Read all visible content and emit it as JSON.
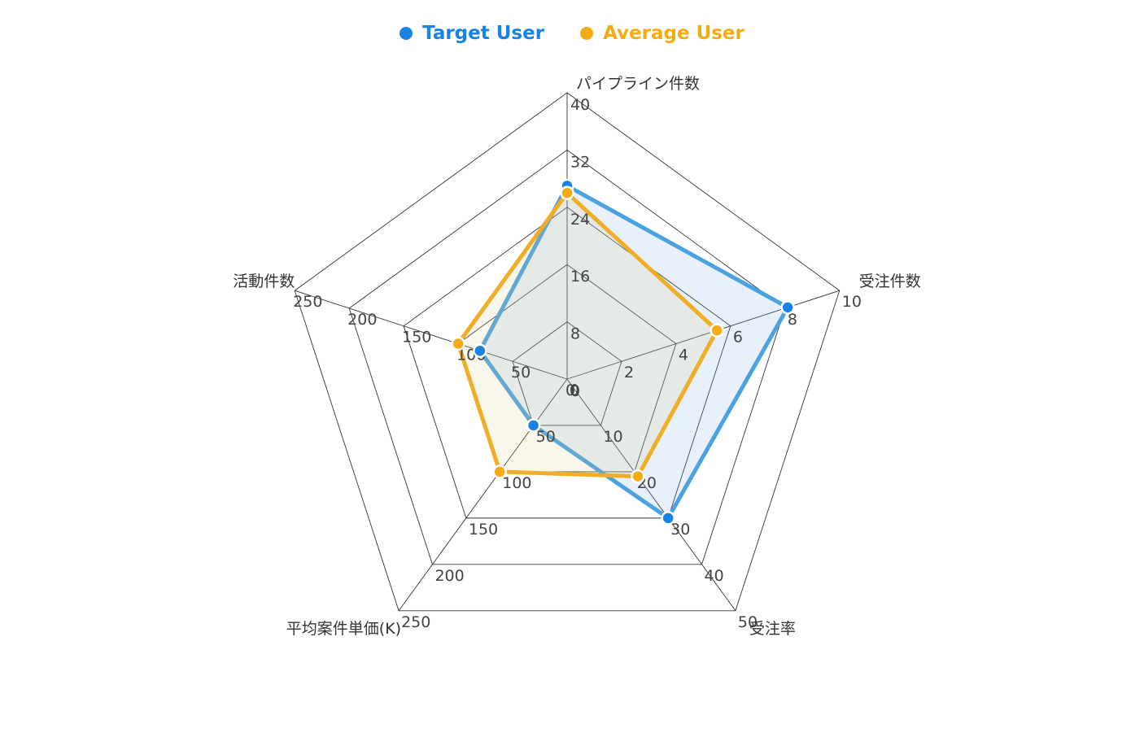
{
  "chart_data": {
    "type": "radar",
    "legend_placement": "top-center",
    "axes": [
      {
        "label": "パイプライン件数",
        "max": 40,
        "ticks": [
          "0",
          "8",
          "16",
          "24",
          "32",
          "40"
        ]
      },
      {
        "label": "受注件数",
        "max": 10,
        "ticks": [
          "0",
          "2",
          "4",
          "6",
          "8",
          "10"
        ]
      },
      {
        "label": "受注率",
        "max": 50,
        "ticks": [
          "0",
          "10",
          "20",
          "30",
          "40",
          "50"
        ]
      },
      {
        "label": "平均案件単価(K)",
        "max": 250,
        "ticks": [
          "0",
          "50",
          "100",
          "150",
          "200",
          "250"
        ]
      },
      {
        "label": "活動件数",
        "max": 250,
        "ticks": [
          "0",
          "50",
          "100",
          "150",
          "200",
          "250"
        ]
      }
    ],
    "series": [
      {
        "name": "Target User",
        "color": "#1a82e2",
        "line_color": "#4aa3e0",
        "fill": "rgba(120,170,220,0.17)",
        "values": [
          27,
          8.1,
          30,
          50,
          80
        ]
      },
      {
        "name": "Average User",
        "color": "#f5ab14",
        "line_color": "#f0ad26",
        "fill": "rgba(220,200,140,0.17)",
        "values": [
          26,
          5.5,
          21,
          100,
          100
        ]
      }
    ]
  }
}
